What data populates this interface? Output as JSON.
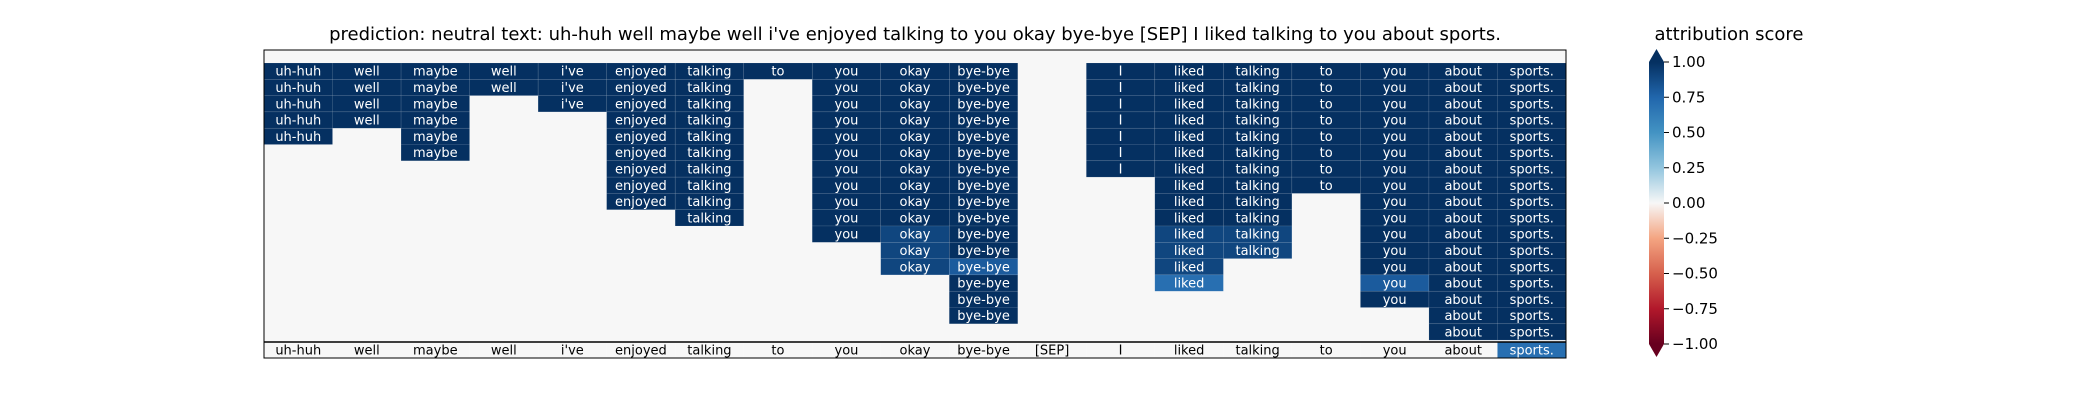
{
  "chart_data": {
    "type": "heatmap",
    "title": "prediction:  neutral     text:  uh-huh well maybe well i've enjoyed talking to you okay bye-bye [SEP] I liked talking to you about sports.",
    "colorbar_label": "attribution score",
    "colormap": "RdBu",
    "vmin": -1.0,
    "vmax": 1.0,
    "colorbar_ticks": [
      "1.00",
      "0.75",
      "0.50",
      "0.25",
      "0.00",
      "−0.25",
      "−0.50",
      "−0.75",
      "−1.00"
    ],
    "tokens": [
      "uh-huh",
      "well",
      "maybe",
      "well",
      "i've",
      "enjoyed",
      "talking",
      "to",
      "you",
      "okay",
      "bye-bye",
      "[SEP]",
      "I",
      "liked",
      "talking",
      "to",
      "you",
      "about",
      "sports."
    ],
    "background_value": 0.0,
    "columns": [
      {
        "token": "uh-huh",
        "cells": [
          1.0,
          1.0,
          1.0,
          1.0,
          1.0
        ]
      },
      {
        "token": "well",
        "cells": [
          1.0,
          1.0,
          1.0,
          1.0
        ]
      },
      {
        "token": "maybe",
        "cells": [
          1.0,
          1.0,
          1.0,
          1.0,
          1.0,
          1.0
        ]
      },
      {
        "token": "well",
        "cells": [
          1.0,
          1.0
        ]
      },
      {
        "token": "i've",
        "cells": [
          1.0,
          1.0,
          1.0
        ]
      },
      {
        "token": "enjoyed",
        "cells": [
          1.0,
          1.0,
          1.0,
          1.0,
          1.0,
          1.0,
          1.0,
          1.0,
          1.0
        ]
      },
      {
        "token": "talking",
        "cells": [
          1.0,
          1.0,
          1.0,
          1.0,
          1.0,
          1.0,
          1.0,
          1.0,
          1.0,
          1.0
        ]
      },
      {
        "token": "to",
        "cells": [
          1.0
        ]
      },
      {
        "token": "you",
        "cells": [
          1.0,
          1.0,
          1.0,
          1.0,
          1.0,
          1.0,
          1.0,
          1.0,
          1.0,
          1.0,
          1.0
        ]
      },
      {
        "token": "okay",
        "cells": [
          1.0,
          1.0,
          1.0,
          1.0,
          1.0,
          1.0,
          1.0,
          1.0,
          1.0,
          1.0,
          0.9,
          0.9,
          0.9
        ]
      },
      {
        "token": "bye-bye",
        "cells": [
          1.0,
          1.0,
          1.0,
          1.0,
          1.0,
          1.0,
          1.0,
          1.0,
          1.0,
          1.0,
          1.0,
          1.0,
          0.8,
          1.0,
          1.0,
          1.0
        ]
      },
      {
        "token": "[SEP]",
        "cells": []
      },
      {
        "token": "I",
        "cells": [
          1.0,
          1.0,
          1.0,
          1.0,
          1.0,
          1.0,
          1.0
        ]
      },
      {
        "token": "liked",
        "cells": [
          1.0,
          1.0,
          1.0,
          1.0,
          1.0,
          1.0,
          1.0,
          1.0,
          1.0,
          1.0,
          0.9,
          0.9,
          0.9,
          0.7
        ]
      },
      {
        "token": "talking",
        "cells": [
          1.0,
          1.0,
          1.0,
          1.0,
          1.0,
          1.0,
          1.0,
          1.0,
          1.0,
          1.0,
          0.9,
          0.9
        ]
      },
      {
        "token": "to",
        "cells": [
          1.0,
          1.0,
          1.0,
          1.0,
          1.0,
          1.0,
          1.0,
          1.0
        ]
      },
      {
        "token": "you",
        "cells": [
          1.0,
          1.0,
          1.0,
          1.0,
          1.0,
          1.0,
          1.0,
          1.0,
          1.0,
          1.0,
          1.0,
          1.0,
          1.0,
          0.8,
          1.0
        ]
      },
      {
        "token": "about",
        "cells": [
          1.0,
          1.0,
          1.0,
          1.0,
          1.0,
          1.0,
          1.0,
          1.0,
          1.0,
          1.0,
          1.0,
          1.0,
          1.0,
          1.0,
          1.0,
          1.0,
          1.0
        ]
      },
      {
        "token": "sports.",
        "cells": [
          1.0,
          1.0,
          1.0,
          1.0,
          1.0,
          1.0,
          1.0,
          1.0,
          1.0,
          1.0,
          1.0,
          1.0,
          1.0,
          1.0,
          1.0,
          1.0,
          1.0
        ]
      }
    ],
    "bottom_row": [
      0,
      0,
      0,
      0,
      0,
      0,
      0,
      0,
      0,
      0,
      0,
      0,
      0,
      0,
      0,
      0,
      0,
      0,
      0.7
    ]
  }
}
